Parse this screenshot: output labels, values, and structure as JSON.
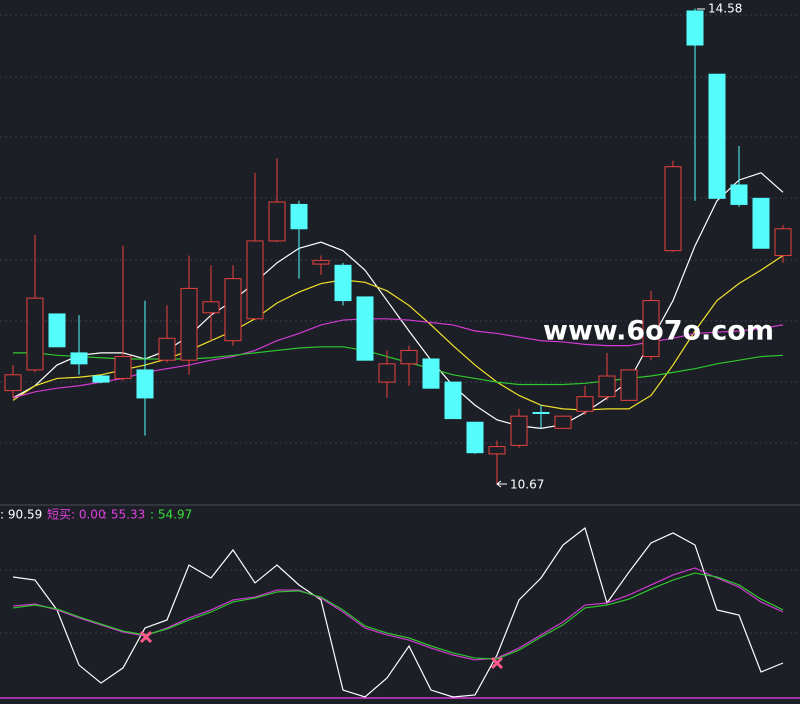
{
  "chart_data": [
    {
      "type": "candlestick",
      "ylim": [
        10.5,
        14.65
      ],
      "up_color": "#e8413e",
      "down_color": "#54fcfc",
      "open": [
        11.44,
        11.61,
        12.07,
        11.75,
        11.56,
        11.54,
        11.61,
        11.69,
        11.69,
        12.08,
        11.85,
        12.03,
        12.67,
        12.97,
        12.48,
        12.47,
        12.21,
        11.51,
        11.66,
        11.7,
        11.51,
        11.18,
        10.92,
        10.99,
        11.26,
        11.13,
        11.27,
        11.39,
        11.36,
        11.72,
        12.59,
        14.56,
        14.04,
        13.13,
        13.02,
        12.55
      ],
      "high": [
        11.65,
        12.72,
        12.07,
        12.06,
        11.57,
        12.63,
        12.18,
        12.14,
        12.55,
        12.47,
        12.47,
        13.23,
        13.35,
        13.0,
        12.55,
        12.49,
        12.21,
        11.77,
        11.81,
        11.7,
        11.51,
        11.18,
        11.03,
        11.29,
        11.32,
        11.23,
        11.48,
        11.75,
        11.61,
        12.26,
        13.33,
        14.58,
        14.04,
        13.45,
        13.02,
        12.8
      ],
      "low": [
        11.38,
        11.59,
        11.8,
        11.57,
        11.5,
        11.52,
        11.07,
        11.67,
        11.57,
        11.85,
        11.81,
        12.02,
        12.66,
        12.36,
        12.39,
        12.14,
        11.69,
        11.38,
        11.48,
        11.46,
        11.21,
        10.92,
        10.67,
        10.97,
        11.13,
        11.13,
        11.24,
        11.36,
        11.36,
        11.69,
        12.58,
        13.0,
        13.02,
        12.95,
        12.61,
        12.49
      ],
      "close": [
        11.57,
        12.2,
        11.8,
        11.66,
        11.51,
        11.72,
        11.38,
        11.87,
        12.28,
        12.17,
        12.36,
        12.67,
        12.99,
        12.77,
        12.51,
        12.18,
        11.69,
        11.66,
        11.77,
        11.46,
        11.21,
        10.93,
        10.98,
        11.23,
        11.26,
        11.23,
        11.39,
        11.56,
        11.61,
        12.18,
        13.28,
        14.28,
        13.02,
        12.97,
        12.61,
        12.77
      ],
      "series": [
        {
          "color": "#ffffff",
          "values": [
            11.38,
            11.48,
            11.65,
            11.73,
            11.75,
            11.75,
            11.7,
            11.77,
            11.89,
            12.06,
            12.18,
            12.33,
            12.49,
            12.61,
            12.66,
            12.59,
            12.43,
            12.18,
            11.93,
            11.69,
            11.48,
            11.32,
            11.2,
            11.15,
            11.13,
            11.16,
            11.26,
            11.38,
            11.52,
            11.85,
            12.18,
            12.63,
            13.0,
            13.17,
            13.23,
            13.07
          ]
        },
        {
          "color": "#f2e22c",
          "values": [
            11.36,
            11.48,
            11.54,
            11.55,
            11.57,
            11.61,
            11.65,
            11.7,
            11.77,
            11.85,
            11.93,
            12.03,
            12.16,
            12.25,
            12.32,
            12.35,
            12.33,
            12.26,
            12.14,
            11.98,
            11.81,
            11.65,
            11.51,
            11.4,
            11.32,
            11.29,
            11.28,
            11.29,
            11.29,
            11.4,
            11.65,
            11.93,
            12.18,
            12.32,
            12.43,
            12.55
          ]
        },
        {
          "color": "#d23ad2",
          "values": [
            11.38,
            11.43,
            11.46,
            11.48,
            11.51,
            11.54,
            11.59,
            11.62,
            11.65,
            11.69,
            11.72,
            11.77,
            11.85,
            11.91,
            11.98,
            12.02,
            12.03,
            12.03,
            12.02,
            12.0,
            11.98,
            11.93,
            11.91,
            11.88,
            11.85,
            11.84,
            11.82,
            11.81,
            11.81,
            11.84,
            11.87,
            11.91,
            11.92,
            11.93,
            11.95,
            11.98
          ]
        },
        {
          "color": "#2fc72f",
          "values": [
            11.75,
            11.75,
            11.73,
            11.72,
            11.71,
            11.7,
            11.7,
            11.7,
            11.7,
            11.71,
            11.73,
            11.75,
            11.77,
            11.79,
            11.8,
            11.8,
            11.77,
            11.72,
            11.67,
            11.62,
            11.57,
            11.54,
            11.51,
            11.49,
            11.49,
            11.49,
            11.5,
            11.52,
            11.54,
            11.56,
            11.59,
            11.62,
            11.66,
            11.69,
            11.72,
            11.73
          ]
        }
      ],
      "high_label": "14.58",
      "low_label": "10.67",
      "watermark": "www.6o7o.com"
    },
    {
      "type": "line",
      "ylim": [
        0,
        100
      ],
      "header": [
        {
          "text": ": 90.59",
          "color": "#ffffff"
        },
        {
          "text": "短买: 0.00",
          "color": "#e040e0"
        },
        {
          "text": ": 55.33",
          "color": "#e040e0"
        },
        {
          "text": ": 54.97",
          "color": "#36e036"
        }
      ],
      "series": [
        {
          "color": "#ffffff",
          "values": [
            70.6,
            68.8,
            51.2,
            18.8,
            8.2,
            17.1,
            40.6,
            45.3,
            77.6,
            70.0,
            86.5,
            67.1,
            77.6,
            65.9,
            57.1,
            4.1,
            0,
            11.2,
            30.0,
            4.1,
            0,
            1.2,
            24.7,
            57.1,
            70.0,
            89.4,
            99.4,
            55.3,
            73.5,
            90.6,
            96.5,
            89.4,
            51.2,
            48.2,
            14.7,
            20.0
          ]
        },
        {
          "color": "#d23ad2",
          "values": [
            53.5,
            54.7,
            51.2,
            46.5,
            42.4,
            38.2,
            35.9,
            40.6,
            46.5,
            51.2,
            57.1,
            58.8,
            62.9,
            62.9,
            58.2,
            50.0,
            40.6,
            36.5,
            33.5,
            28.8,
            24.7,
            21.8,
            22.9,
            28.8,
            36.5,
            44.1,
            54.1,
            55.3,
            60.0,
            65.9,
            71.8,
            75.9,
            70.0,
            64.7,
            55.9,
            50.0
          ]
        },
        {
          "color": "#2fc72f",
          "values": [
            52.4,
            54.1,
            51.8,
            47.1,
            42.9,
            38.8,
            36.5,
            40.0,
            45.3,
            50.0,
            55.9,
            58.2,
            61.8,
            62.4,
            58.8,
            51.2,
            41.8,
            37.6,
            34.7,
            30.0,
            25.9,
            22.9,
            22.4,
            27.6,
            35.3,
            42.4,
            52.4,
            54.1,
            57.6,
            63.5,
            68.8,
            72.9,
            70.6,
            65.9,
            57.6,
            51.2
          ]
        }
      ]
    }
  ]
}
